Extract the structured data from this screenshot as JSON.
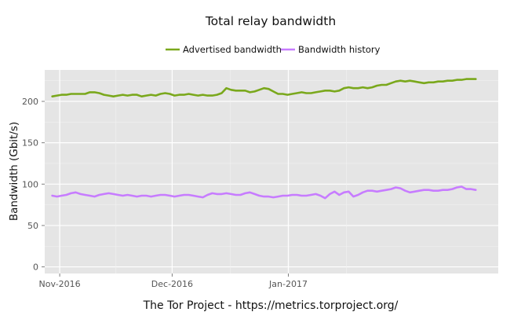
{
  "chart_data": {
    "type": "line",
    "title": "Total relay bandwidth",
    "xlabel": "",
    "ylabel": "Bandwidth (Gbit/s)",
    "caption": "The Tor Project - https://metrics.torproject.org/",
    "x_start": "2016-10-30",
    "x_end": "2017-02-20",
    "xlim": [
      "2016-10-28",
      "2017-02-26"
    ],
    "ylim": [
      -8,
      238
    ],
    "x_ticks": [
      {
        "date": "2016-11-01",
        "label": "Nov-2016"
      },
      {
        "date": "2016-12-01",
        "label": "Dec-2016"
      },
      {
        "date": "2017-01-01",
        "label": "Jan-2017"
      }
    ],
    "y_ticks": [
      0,
      50,
      100,
      150,
      200
    ],
    "grid": true,
    "legend_position": "top",
    "series": [
      {
        "name": "Advertised bandwidth",
        "color": "#7aa81c",
        "values": [
          206,
          207,
          208,
          208,
          209,
          209,
          209,
          209,
          211,
          211,
          210,
          208,
          207,
          206,
          207,
          208,
          207,
          208,
          208,
          206,
          207,
          208,
          207,
          209,
          210,
          209,
          207,
          208,
          208,
          209,
          208,
          207,
          208,
          207,
          207,
          208,
          210,
          216,
          214,
          213,
          213,
          213,
          211,
          212,
          214,
          216,
          215,
          212,
          209,
          209,
          208,
          209,
          210,
          211,
          210,
          210,
          211,
          212,
          213,
          213,
          212,
          213,
          216,
          217,
          216,
          216,
          217,
          216,
          217,
          219,
          220,
          220,
          222,
          224,
          225,
          224,
          225,
          224,
          223,
          222,
          223,
          223,
          224,
          224,
          225,
          225,
          226,
          226,
          227,
          227,
          227
        ]
      },
      {
        "name": "Bandwidth history",
        "color": "#c77cff",
        "values": [
          86,
          85,
          86,
          87,
          89,
          90,
          88,
          87,
          86,
          85,
          87,
          88,
          89,
          88,
          87,
          86,
          87,
          86,
          85,
          86,
          86,
          85,
          86,
          87,
          87,
          86,
          85,
          86,
          87,
          87,
          86,
          85,
          84,
          87,
          89,
          88,
          88,
          89,
          88,
          87,
          87,
          89,
          90,
          88,
          86,
          85,
          85,
          84,
          85,
          86,
          86,
          87,
          87,
          86,
          86,
          87,
          88,
          86,
          83,
          88,
          91,
          87,
          90,
          91,
          85,
          87,
          90,
          92,
          92,
          91,
          92,
          93,
          94,
          96,
          95,
          92,
          90,
          91,
          92,
          93,
          93,
          92,
          92,
          93,
          93,
          94,
          96,
          97,
          94,
          94,
          93
        ]
      }
    ]
  }
}
